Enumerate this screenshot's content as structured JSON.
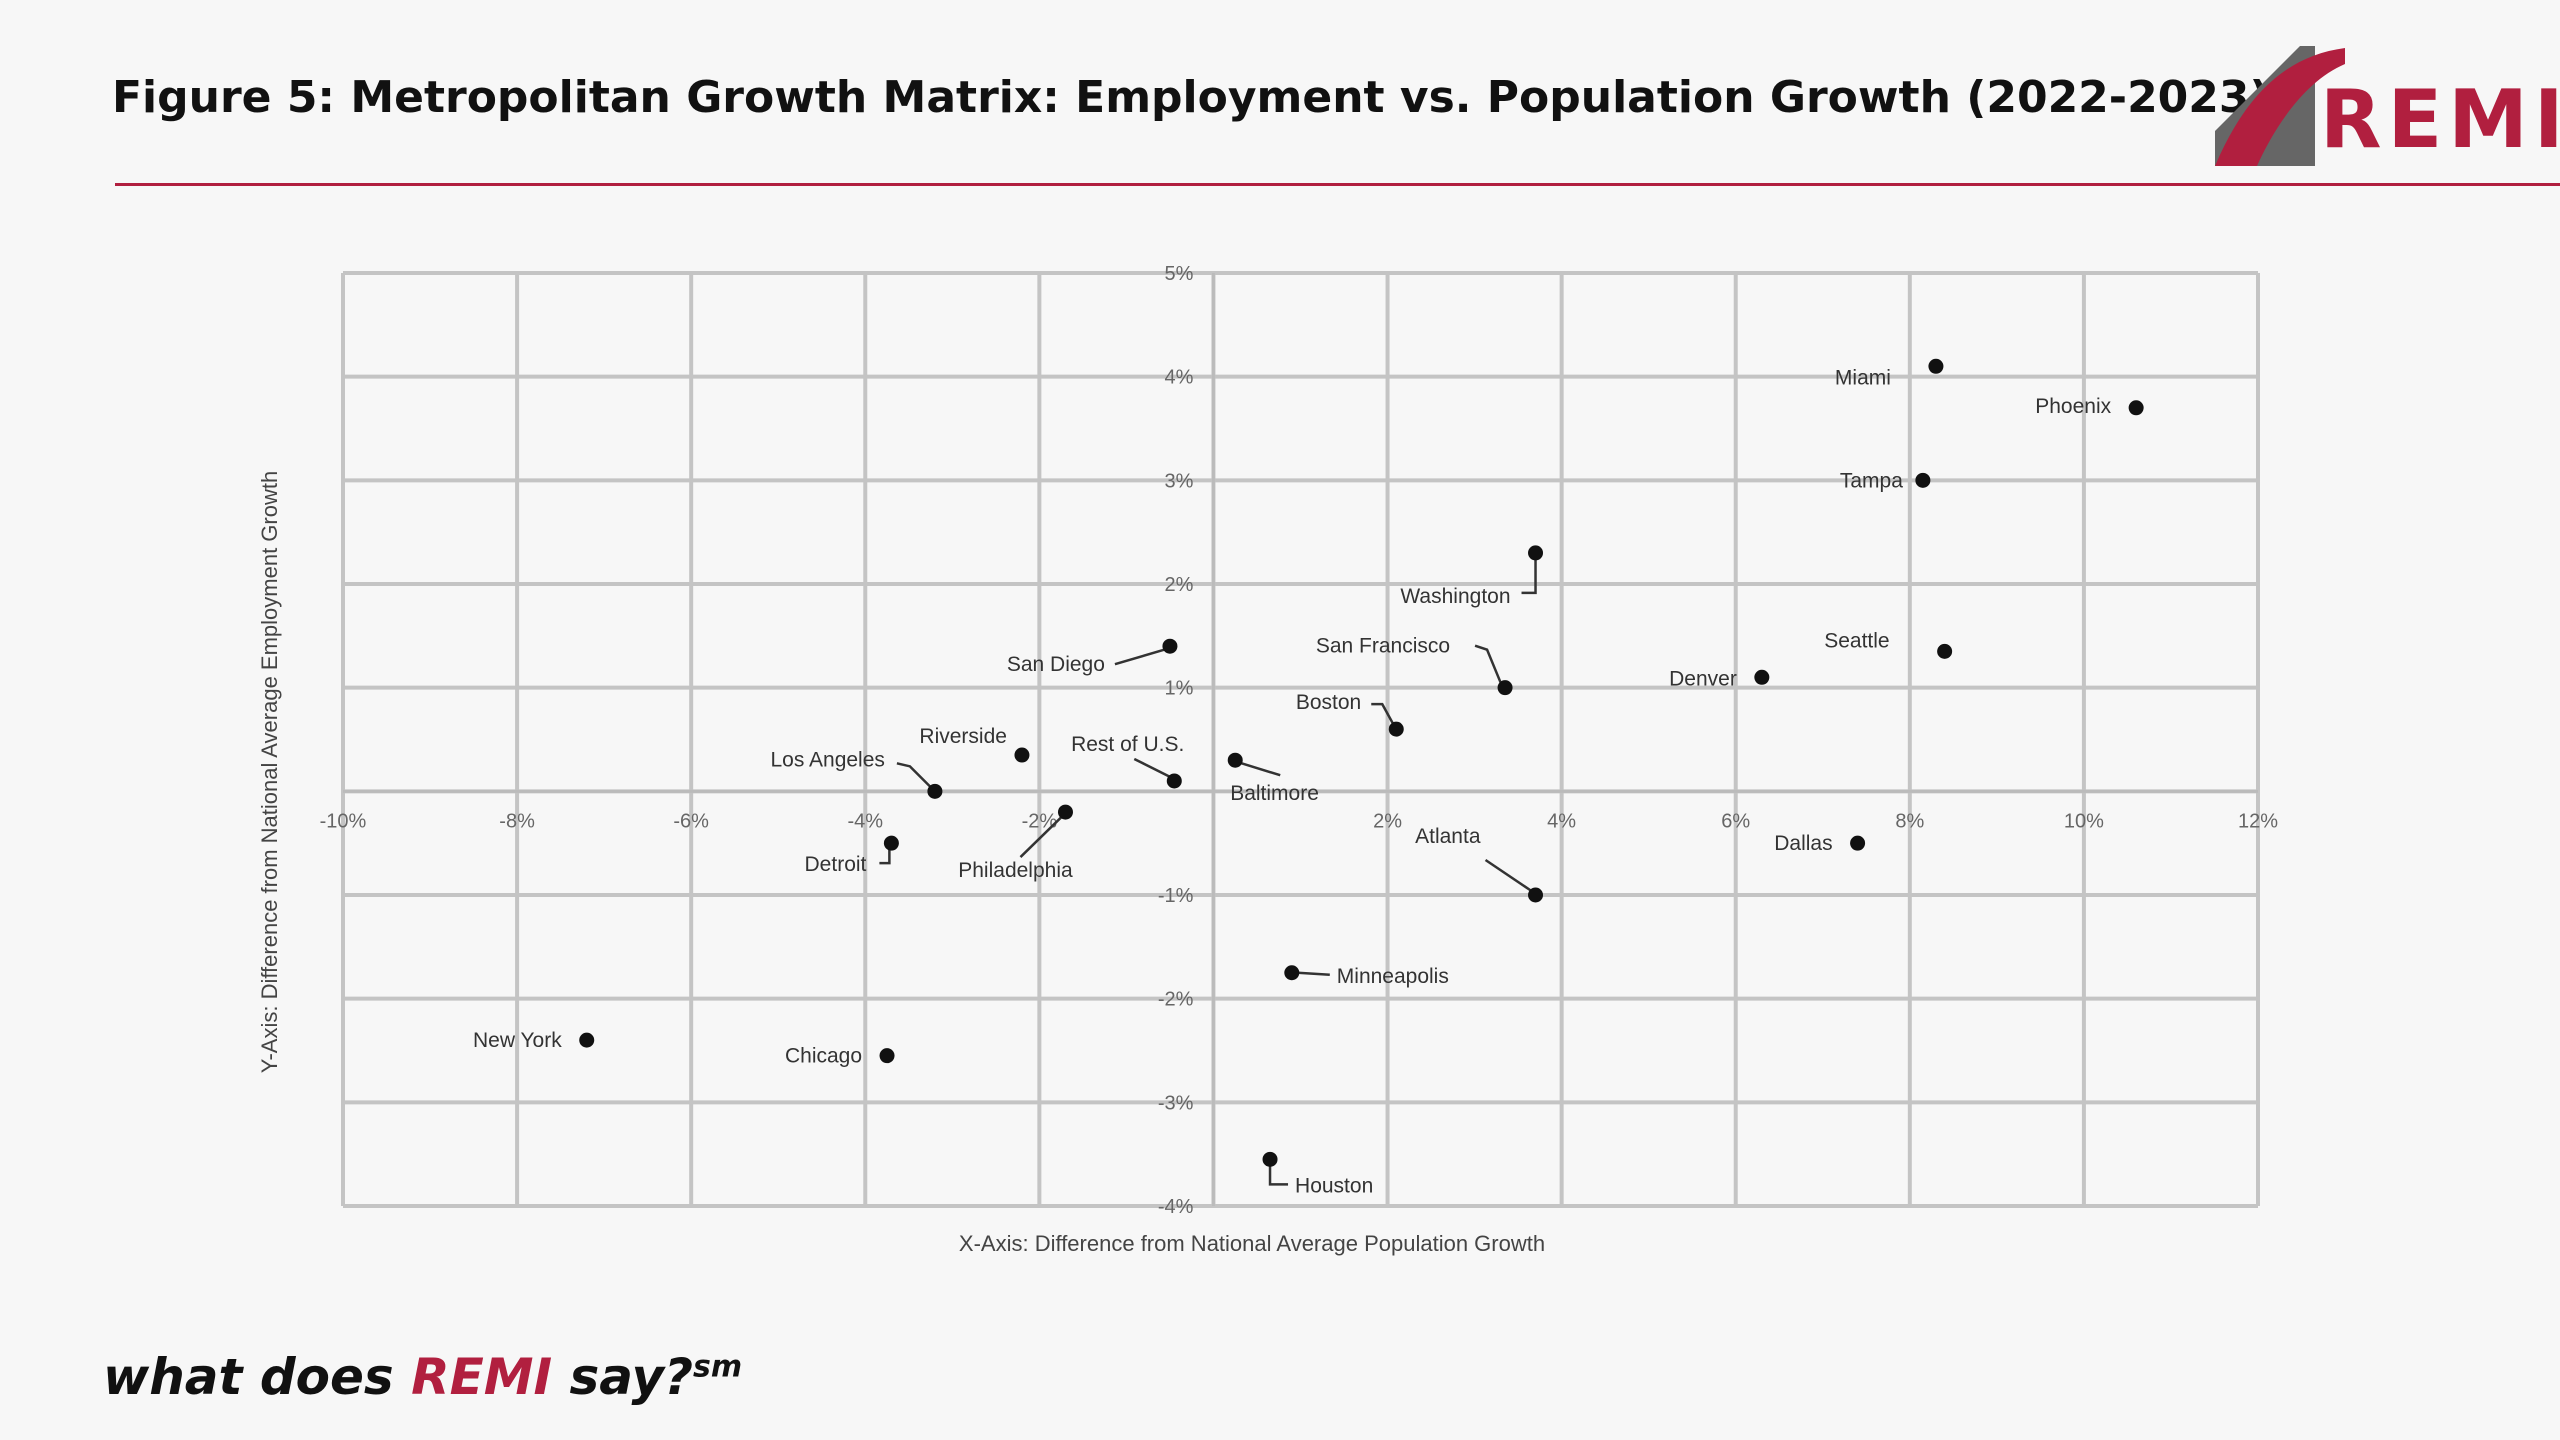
{
  "slide": {
    "title": "Figure 5: Metropolitan Growth Matrix: Employment vs. Population Growth (2022-2023)"
  },
  "logo": {
    "text": "REMI",
    "brand_color": "#b11f3f"
  },
  "footer": {
    "prefix": "what does ",
    "brand": "REMI",
    "suffix": " say?",
    "superscript": "sm"
  },
  "chart_data": {
    "type": "scatter",
    "title": "",
    "xlabel": "X-Axis: Difference from National Average Population Growth",
    "ylabel": "Y-Axis: Difference from National Average Employment Growth",
    "xlim": [
      -10,
      12
    ],
    "ylim": [
      -4,
      5
    ],
    "x_ticks": [
      -10,
      -8,
      -6,
      -4,
      -2,
      2,
      4,
      6,
      8,
      10,
      12
    ],
    "x_tick_labels": [
      "-10%",
      "-8%",
      "-6%",
      "-4%",
      "-2%",
      "2%",
      "4%",
      "6%",
      "8%",
      "10%",
      "12%"
    ],
    "y_ticks": [
      5,
      4,
      3,
      2,
      1,
      -1,
      -2,
      -3,
      -4
    ],
    "y_tick_labels": [
      "5%",
      "4%",
      "3%",
      "2%",
      "1%",
      "-1%",
      "-2%",
      "-3%",
      "-4%"
    ],
    "grid": true,
    "legend": "none",
    "points": [
      {
        "name": "Miami",
        "x": 8.3,
        "y": 4.1
      },
      {
        "name": "Phoenix",
        "x": 10.6,
        "y": 3.7
      },
      {
        "name": "Tampa",
        "x": 8.15,
        "y": 3.0
      },
      {
        "name": "Washington",
        "x": 3.7,
        "y": 2.3
      },
      {
        "name": "San Diego",
        "x": -0.5,
        "y": 1.4
      },
      {
        "name": "San Francisco",
        "x": 3.35,
        "y": 1.0
      },
      {
        "name": "Seattle",
        "x": 8.4,
        "y": 1.35
      },
      {
        "name": "Denver",
        "x": 6.3,
        "y": 1.1
      },
      {
        "name": "Boston",
        "x": 2.1,
        "y": 0.6
      },
      {
        "name": "Riverside",
        "x": -2.2,
        "y": 0.35
      },
      {
        "name": "Rest of U.S.",
        "x": -0.45,
        "y": 0.1
      },
      {
        "name": "Baltimore",
        "x": 0.25,
        "y": 0.3
      },
      {
        "name": "Los Angeles",
        "x": -3.2,
        "y": 0.0
      },
      {
        "name": "Philadelphia",
        "x": -1.7,
        "y": -0.2
      },
      {
        "name": "Detroit",
        "x": -3.7,
        "y": -0.5
      },
      {
        "name": "Dallas",
        "x": 7.4,
        "y": -0.5
      },
      {
        "name": "Atlanta",
        "x": 3.7,
        "y": -1.0
      },
      {
        "name": "Minneapolis",
        "x": 0.9,
        "y": -1.75
      },
      {
        "name": "New York",
        "x": -7.2,
        "y": -2.4
      },
      {
        "name": "Chicago",
        "x": -3.75,
        "y": -2.55
      },
      {
        "name": "Houston",
        "x": 0.65,
        "y": -3.55
      }
    ]
  }
}
